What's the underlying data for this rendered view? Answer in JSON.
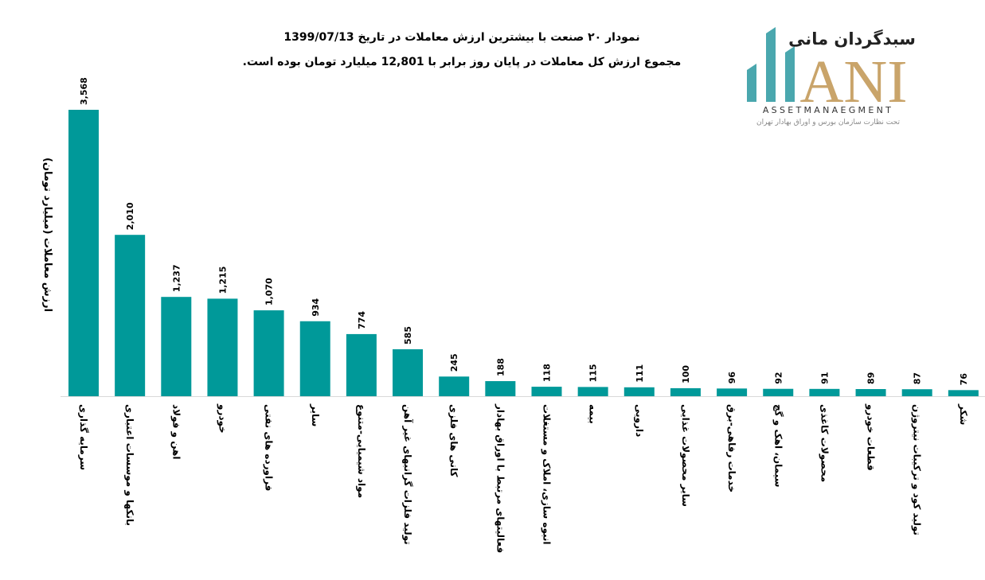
{
  "chart_data": {
    "type": "bar",
    "title": "نمودار ۲۰ صنعت با بیشترین ارزش معاملات در تاریخ 1399/07/13",
    "subtitle": "مجموع ارزش کل معاملات در پایان روز برابر با 12,801 میلیارد تومان بوده است.",
    "ylabel": "ارزش معاملات (میلیارد تومان)",
    "xlabel": "",
    "ylim": [
      0,
      3568
    ],
    "grid": false,
    "categories": [
      "سرمایه گذاری",
      "بانکها و موسسات اعتباری",
      "اهن و فولاد",
      "خودرو",
      "فراورده های نفتی",
      "سایر",
      "مواد شیمیایی-متنوع",
      "تولید فلزات گرانبهای غیر آهن",
      "کانی های فلزی",
      "فعالیتهای مرتبط با اوراق بهادار",
      "انبوه سازی، املاک و مستغلات",
      "بیمه",
      "دارویی",
      "سایر محصولات غذایی",
      "خدمات رفاهی-برق",
      "سیمان، اهک و گچ",
      "محصولات کاغذی",
      "قطعات خودرو",
      "تولید کود و ترکیبات نیتروژن",
      "شکر"
    ],
    "values": [
      3568,
      2010,
      1237,
      1215,
      1070,
      934,
      774,
      585,
      245,
      188,
      118,
      115,
      111,
      100,
      96,
      92,
      91,
      89,
      87,
      76
    ],
    "value_labels": [
      "3,568",
      "2,010",
      "1,237",
      "1,215",
      "1,070",
      "934",
      "774",
      "585",
      "245",
      "188",
      "118",
      "115",
      "111",
      "100",
      "96",
      "92",
      "91",
      "89",
      "87",
      "76"
    ],
    "bar_color": "#009999"
  },
  "logo": {
    "brand_fa": "سبدگردان مانی",
    "mark": "ANI",
    "tagline": "ASSETMANAEGMENT",
    "subtitle_fa": "تحت نظارت سازمان بورس و اوراق بهادار تهران"
  }
}
